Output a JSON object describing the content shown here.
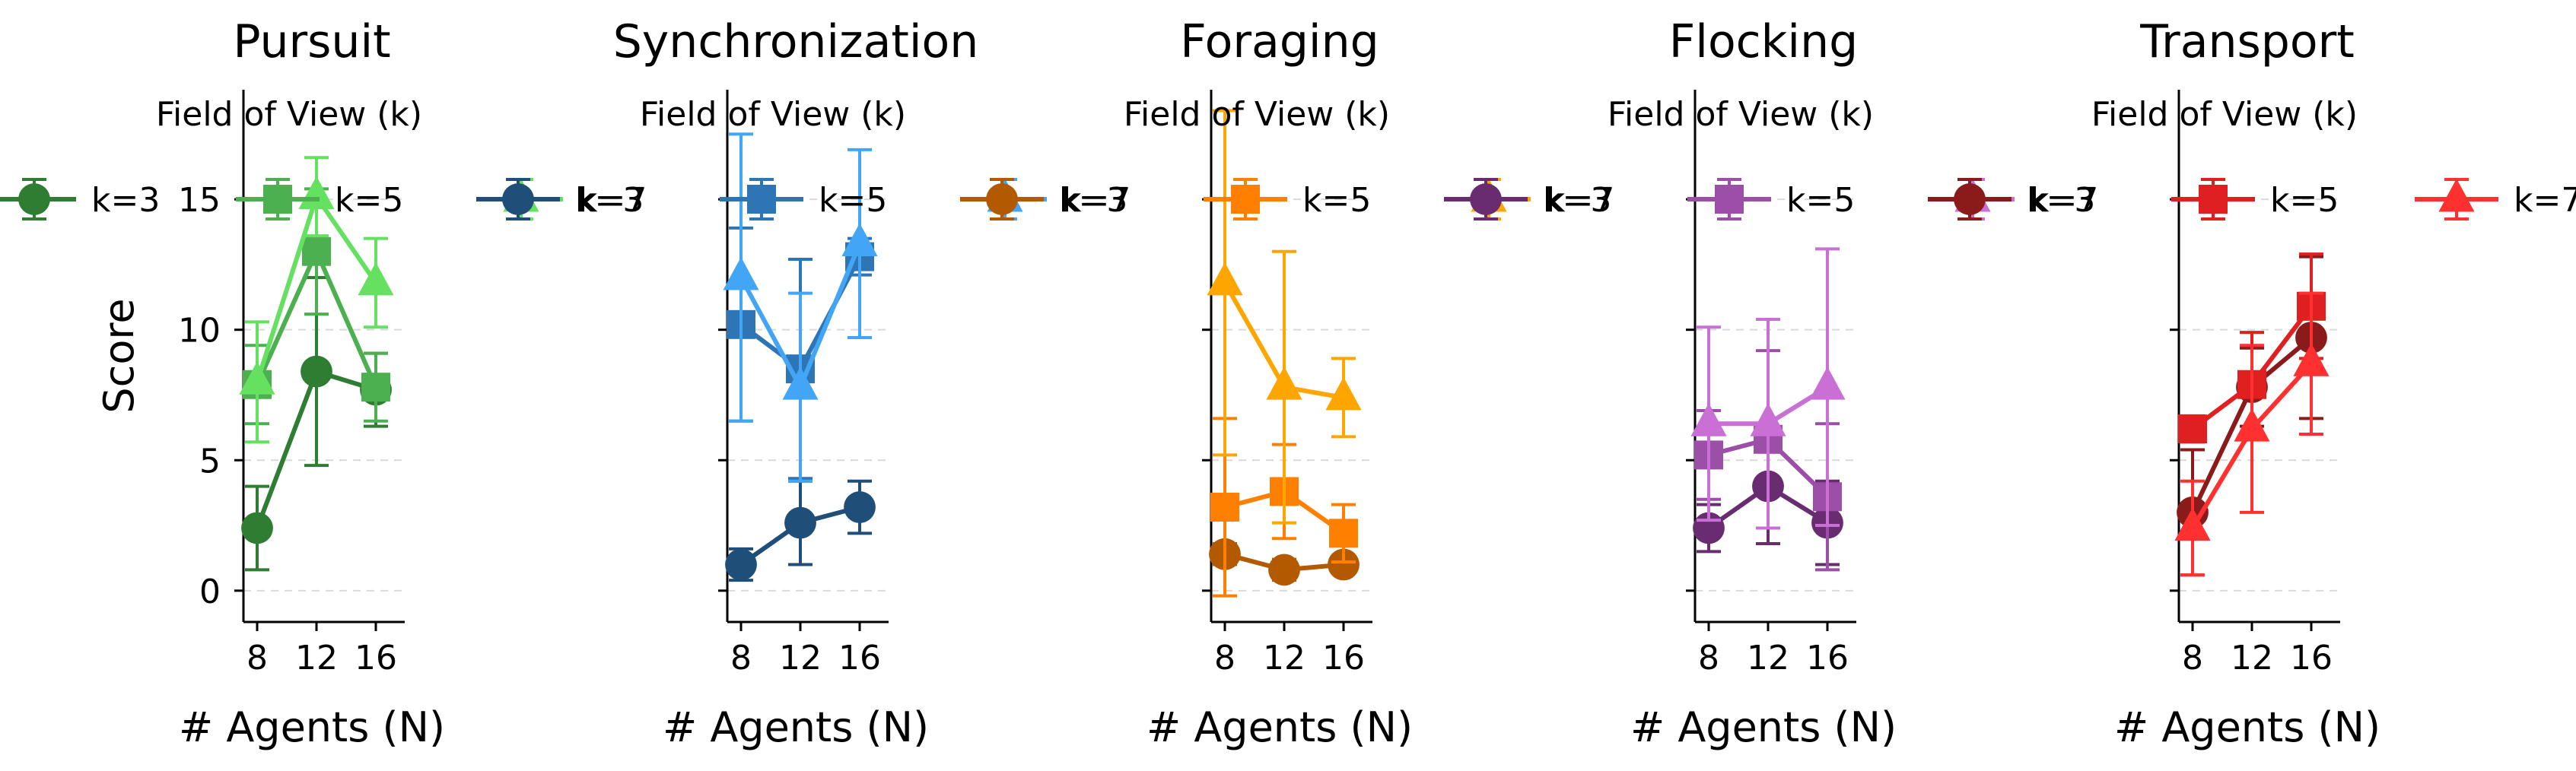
{
  "chart_data": [
    {
      "type": "line",
      "title": "Pursuit",
      "xlabel": "# Agents (N)",
      "ylabel": "Score",
      "x": [
        8,
        12,
        16
      ],
      "xticks": [
        "8",
        "12",
        "16"
      ],
      "yticks": [
        "0",
        "5",
        "10",
        "15"
      ],
      "ylim": [
        -1.2,
        19.2
      ],
      "grid": "horizontal-dashed",
      "legend": {
        "title": "Field of View (k)",
        "placement": "top",
        "entries": [
          "k=3",
          "k=5",
          "k=7"
        ]
      },
      "series": [
        {
          "name": "k=3",
          "marker": "circle",
          "color": "#2e7d32",
          "values": [
            2.4,
            8.4,
            7.7
          ],
          "err": [
            1.6,
            3.6,
            1.4
          ]
        },
        {
          "name": "k=5",
          "marker": "square",
          "color": "#4caf50",
          "values": [
            7.9,
            13.0,
            7.8
          ],
          "err": [
            1.5,
            2.4,
            1.3
          ]
        },
        {
          "name": "k=7",
          "marker": "triangle",
          "color": "#66e060",
          "values": [
            8.0,
            15.1,
            11.8
          ],
          "err": [
            2.3,
            1.5,
            1.7
          ]
        }
      ]
    },
    {
      "type": "line",
      "title": "Synchronization",
      "xlabel": "# Agents (N)",
      "ylabel": "",
      "x": [
        8,
        12,
        16
      ],
      "xticks": [
        "8",
        "12",
        "16"
      ],
      "ylim": [
        -1.2,
        19.2
      ],
      "grid": "horizontal-dashed",
      "legend": {
        "title": "Field of View (k)",
        "placement": "top",
        "entries": [
          "k=3",
          "k=5",
          "k=7"
        ]
      },
      "series": [
        {
          "name": "k=3",
          "marker": "circle",
          "color": "#1f4e79",
          "values": [
            1.0,
            2.6,
            3.2
          ],
          "err": [
            0.6,
            1.6,
            1.0
          ]
        },
        {
          "name": "k=5",
          "marker": "square",
          "color": "#2e75b6",
          "values": [
            10.2,
            8.5,
            12.8
          ],
          "err": [
            3.7,
            4.2,
            0.7
          ]
        },
        {
          "name": "k=7",
          "marker": "triangle",
          "color": "#42a5f5",
          "values": [
            12.0,
            7.8,
            13.3
          ],
          "err": [
            5.5,
            3.6,
            3.6
          ]
        }
      ]
    },
    {
      "type": "line",
      "title": "Foraging",
      "xlabel": "# Agents (N)",
      "ylabel": "",
      "x": [
        8,
        12,
        16
      ],
      "xticks": [
        "8",
        "12",
        "16"
      ],
      "ylim": [
        -1.2,
        19.2
      ],
      "grid": "horizontal-dashed",
      "legend": {
        "title": "Field of View (k)",
        "placement": "top",
        "entries": [
          "k=3",
          "k=5",
          "k=7"
        ]
      },
      "series": [
        {
          "name": "k=3",
          "marker": "circle",
          "color": "#b35900",
          "values": [
            1.4,
            0.8,
            1.0
          ],
          "err": [
            0.4,
            0.4,
            0.3
          ]
        },
        {
          "name": "k=5",
          "marker": "square",
          "color": "#ff8000",
          "values": [
            3.2,
            3.8,
            2.2
          ],
          "err": [
            3.4,
            1.8,
            1.1
          ]
        },
        {
          "name": "k=7",
          "marker": "triangle",
          "color": "#ffa500",
          "values": [
            11.8,
            7.8,
            7.4
          ],
          "err": [
            6.6,
            5.2,
            1.5
          ]
        }
      ]
    },
    {
      "type": "line",
      "title": "Flocking",
      "xlabel": "# Agents (N)",
      "ylabel": "",
      "x": [
        8,
        12,
        16
      ],
      "xticks": [
        "8",
        "12",
        "16"
      ],
      "ylim": [
        -1.2,
        19.2
      ],
      "grid": "horizontal-dashed",
      "legend": {
        "title": "Field of View (k)",
        "placement": "top",
        "entries": [
          "k=3",
          "k=5",
          "k=7"
        ]
      },
      "series": [
        {
          "name": "k=3",
          "marker": "circle",
          "color": "#6a2c70",
          "values": [
            2.4,
            4.0,
            2.6
          ],
          "err": [
            0.9,
            2.2,
            1.6
          ]
        },
        {
          "name": "k=5",
          "marker": "square",
          "color": "#9b4fa6",
          "values": [
            5.2,
            5.8,
            3.6
          ],
          "err": [
            1.7,
            3.4,
            2.8
          ]
        },
        {
          "name": "k=7",
          "marker": "triangle",
          "color": "#c96fd6",
          "values": [
            6.4,
            6.4,
            7.8
          ],
          "err": [
            3.7,
            4.0,
            5.3
          ]
        }
      ]
    },
    {
      "type": "line",
      "title": "Transport",
      "xlabel": "# Agents (N)",
      "ylabel": "",
      "x": [
        8,
        12,
        16
      ],
      "xticks": [
        "8",
        "12",
        "16"
      ],
      "ylim": [
        -1.2,
        19.2
      ],
      "grid": "horizontal-dashed",
      "legend": {
        "title": "Field of View (k)",
        "placement": "top",
        "entries": [
          "k=3",
          "k=5",
          "k=7"
        ]
      },
      "series": [
        {
          "name": "k=3",
          "marker": "circle",
          "color": "#8b1a1a",
          "values": [
            3.0,
            7.8,
            9.7
          ],
          "err": [
            2.4,
            1.5,
            3.1
          ]
        },
        {
          "name": "k=5",
          "marker": "square",
          "color": "#e02020",
          "values": [
            6.2,
            7.9,
            10.9
          ],
          "err": [
            0.5,
            2.0,
            2.0
          ]
        },
        {
          "name": "k=7",
          "marker": "triangle",
          "color": "#ff3030",
          "values": [
            2.4,
            6.2,
            8.7
          ],
          "err": [
            1.8,
            3.2,
            2.7
          ]
        }
      ]
    }
  ]
}
